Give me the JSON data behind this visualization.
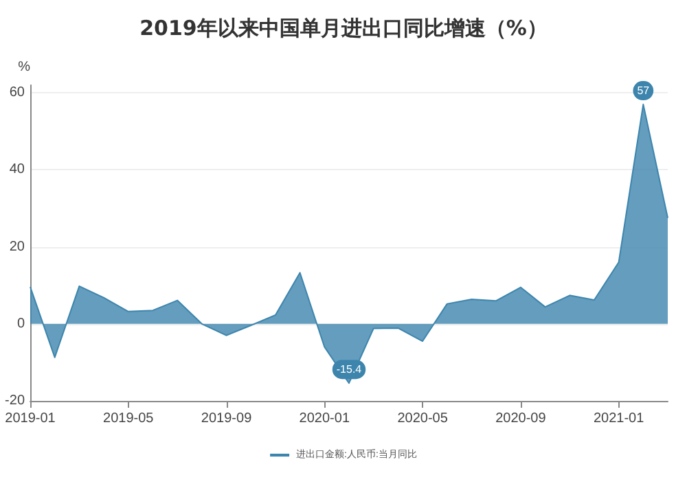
{
  "chart_data": {
    "type": "area",
    "title": "2019年以来中国单月进出口同比增速（%）",
    "ylabel": "%",
    "x": [
      "2019-01",
      "2019-02",
      "2019-03",
      "2019-04",
      "2019-05",
      "2019-06",
      "2019-07",
      "2019-08",
      "2019-09",
      "2019-10",
      "2019-11",
      "2019-12",
      "2020-01",
      "2020-02",
      "2020-03",
      "2020-04",
      "2020-05",
      "2020-06",
      "2020-07",
      "2020-08",
      "2020-09",
      "2020-10",
      "2020-11",
      "2020-12",
      "2021-01",
      "2021-02",
      "2021-03"
    ],
    "series": [
      {
        "name": "进出口金额:人民币:当月同比",
        "color": "#3d85ad",
        "values": [
          9.6,
          -8.7,
          9.8,
          6.8,
          3.2,
          3.5,
          6.1,
          0,
          -3.0,
          -0.4,
          2.3,
          13.3,
          -6,
          -15.4,
          -1.2,
          -1.1,
          -4.5,
          5.2,
          6.4,
          6.0,
          9.5,
          4.4,
          7.4,
          6.2,
          16,
          57,
          27.5
        ],
        "value_labels": [
          null,
          null,
          null,
          null,
          null,
          null,
          null,
          null,
          null,
          null,
          null,
          null,
          null,
          "-15.4",
          null,
          null,
          null,
          null,
          null,
          null,
          null,
          null,
          null,
          null,
          null,
          "57",
          null
        ]
      }
    ],
    "xlim": [
      "2019-01",
      "2021-03"
    ],
    "xticks": [
      "2019-01",
      "2019-05",
      "2019-09",
      "2020-01",
      "2020-05",
      "2020-09",
      "2021-01"
    ],
    "ylim": [
      -20,
      62
    ],
    "yticks": [
      -20,
      0,
      20,
      40,
      60
    ],
    "grid": "y",
    "legend": "bottom",
    "marker": "none"
  }
}
